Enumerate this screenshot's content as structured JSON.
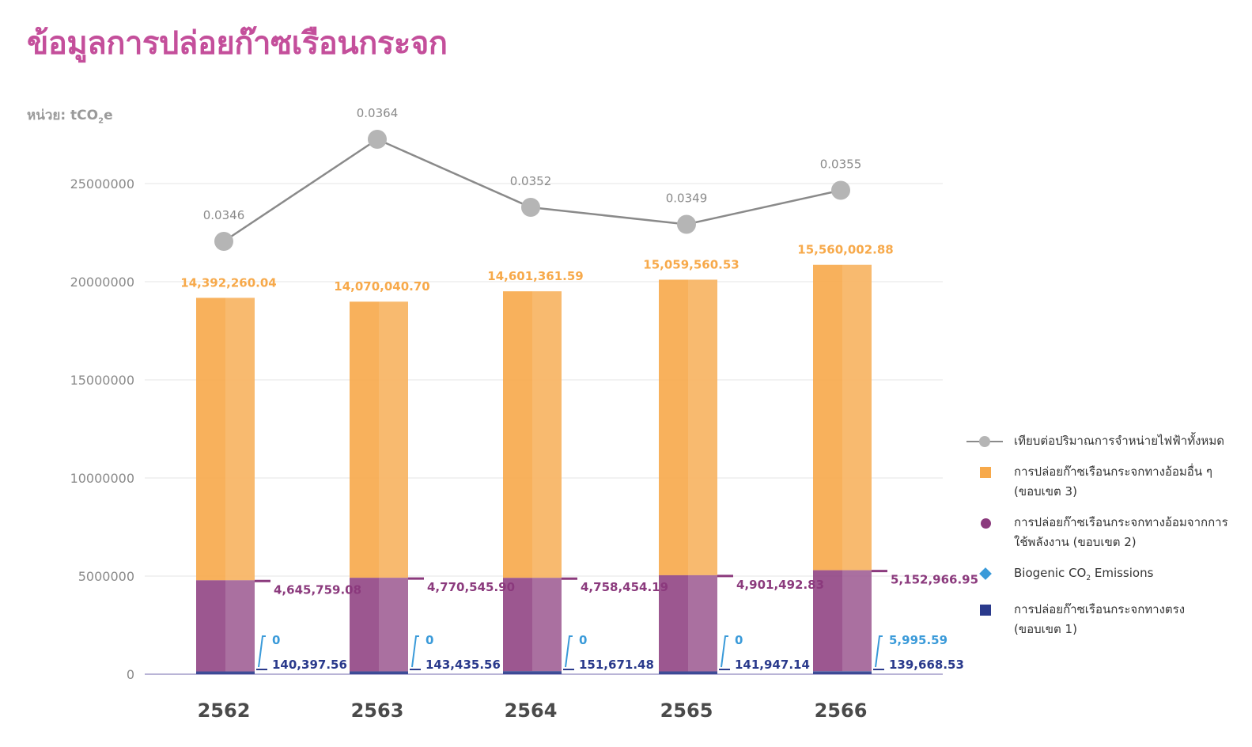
{
  "title": "ข้อมูลการปล่อยก๊าซเรือนกระจก",
  "unit": {
    "prefix": "หน่วย: tCO",
    "sub": "2",
    "suffix": "e"
  },
  "legend": {
    "intensity": "เทียบต่อปริมาณการจำหน่ายไฟฟ้าทั้งหมด",
    "scope3": "การปล่อยก๊าซเรือนกระจกทางอ้อมอื่น ๆ (ขอบเขต 3)",
    "scope2": "การปล่อยก๊าซเรือนกระจกทางอ้อมจากการใช้พลังงาน (ขอบเขต 2)",
    "biogenic_prefix": "Biogenic CO",
    "biogenic_sub": "2",
    "biogenic_suffix": " Emissions",
    "scope1": "การปล่อยก๊าซเรือนกระจกทางตรง (ขอบเขต 1)"
  },
  "colors": {
    "title": "#c44f9b",
    "scope3": "#f7a94a",
    "scope2": "#8b3a7d",
    "biogenic": "#3a9ad9",
    "scope1": "#2a3a8c",
    "intensity": "#b5b5b5",
    "axis_text": "#8a8a8a"
  },
  "chart_data": {
    "type": "bar",
    "stacked": true,
    "categories": [
      "2562",
      "2563",
      "2564",
      "2565",
      "2566"
    ],
    "ylim": [
      0,
      25000000
    ],
    "yticks": [
      "0",
      "5000000",
      "10000000",
      "15000000",
      "20000000",
      "25000000"
    ],
    "grid": true,
    "legend_position": "right",
    "series": [
      {
        "key": "scope1",
        "values": [
          140397.56,
          143435.56,
          151671.48,
          141947.14,
          139668.53
        ],
        "labels": [
          "140,397.56",
          "143,435.56",
          "151,671.48",
          "141,947.14",
          "139,668.53"
        ]
      },
      {
        "key": "biogenic",
        "values": [
          0,
          0,
          0,
          0,
          5995.59
        ],
        "labels": [
          "0",
          "0",
          "0",
          "0",
          "5,995.59"
        ]
      },
      {
        "key": "scope2",
        "values": [
          4645759.08,
          4770545.9,
          4758454.19,
          4901492.83,
          5152966.95
        ],
        "labels": [
          "4,645,759.08",
          "4,770,545.90",
          "4,758,454.19",
          "4,901,492.83",
          "5,152,966.95"
        ]
      },
      {
        "key": "scope3",
        "values": [
          14392260.04,
          14070040.7,
          14601361.59,
          15059560.53,
          15560002.88
        ],
        "labels": [
          "14,392,260.04",
          "14,070,040.70",
          "14,601,361.59",
          "15,059,560.53",
          "15,560,002.88"
        ]
      }
    ],
    "line": {
      "key": "intensity",
      "values": [
        0.0346,
        0.0364,
        0.0352,
        0.0349,
        0.0355
      ],
      "labels": [
        "0.0346",
        "0.0364",
        "0.0352",
        "0.0349",
        "0.0355"
      ]
    }
  }
}
